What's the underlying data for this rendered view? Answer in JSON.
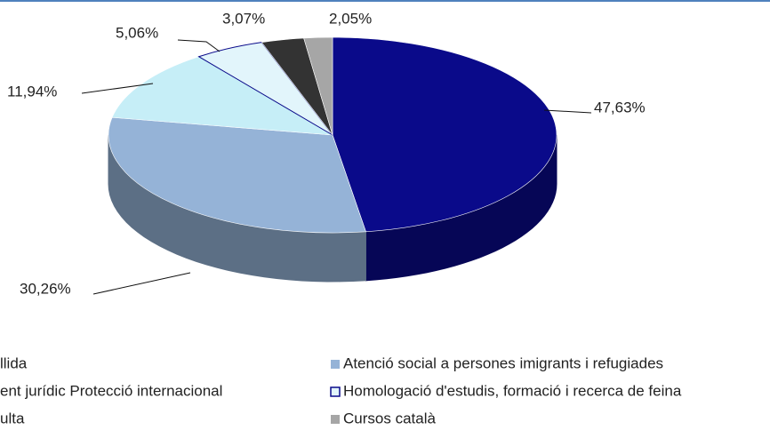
{
  "chart_data": {
    "type": "pie3d",
    "categories": [
      "llida",
      "Atenció social a persones imigrants i refugiades",
      "ent jurídic Protecció internacional",
      "Homologació d'estudis, formació i recerca de feina",
      "ulta",
      "Cursos català"
    ],
    "values": [
      47.63,
      30.26,
      11.94,
      5.06,
      3.07,
      2.05
    ],
    "value_labels": [
      "47,63%",
      "30,26%",
      "11,94%",
      "5,06%",
      "3,07%",
      "2,05%"
    ],
    "colors": [
      "#0a0a8a",
      "#95b3d7",
      "#c6eef7",
      "#e2f5fb",
      "#333333",
      "#a6a6a6"
    ]
  }
}
